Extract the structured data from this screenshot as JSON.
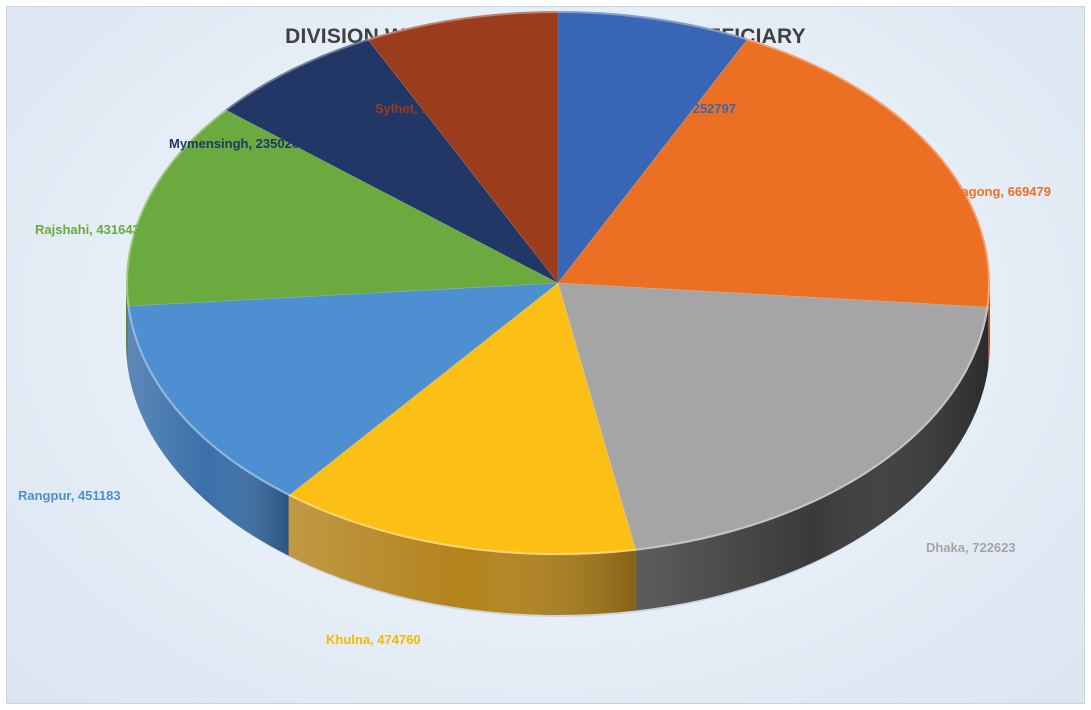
{
  "chart_data": {
    "type": "pie",
    "title": "DIVISION WISE CASH RECEIVED BY BENEFICIARY",
    "slices": [
      {
        "label": "Barisal, 252797",
        "name": "Barisal",
        "value": 252797,
        "color": "#3866b4",
        "side": "#284c8c"
      },
      {
        "label": "Chittagong, 669479",
        "name": "Chittagong",
        "value": 669479,
        "color": "#ec7024",
        "side": "#b5531a"
      },
      {
        "label": "Dhaka, 722623",
        "name": "Dhaka",
        "value": 722623,
        "color": "#a5a5a5",
        "side": "#3a3a3a"
      },
      {
        "label": "Khulna, 474760",
        "name": "Khulna",
        "value": 474760,
        "color": "#fbbf16",
        "side": "#b3831c"
      },
      {
        "label": "Rangpur, 451183",
        "name": "Rangpur",
        "value": 451183,
        "color": "#4d8fd1",
        "side": "#3a6fa8"
      },
      {
        "label": "Rajshahi, 431643",
        "name": "Rajshahi",
        "value": 431643,
        "color": "#6aaa3e",
        "side": "#4b7d2b"
      },
      {
        "label": "Mymensingh, 235026",
        "name": "Mymensingh",
        "value": 235026,
        "color": "#223766",
        "side": "#172749"
      },
      {
        "label": "Sylhet, 253624",
        "name": "Sylhet",
        "value": 253624,
        "color": "#9b3d1c",
        "side": "#6e2a13"
      }
    ],
    "label_colors": {
      "Barisal": "#3866b4",
      "Chittagong": "#ec7024",
      "Dhaka": "#a5a5a5",
      "Khulna": "#f5b800",
      "Rangpur": "#4d8fd1",
      "Rajshahi": "#6aaa3e",
      "Mymensingh": "#223766",
      "Sylhet": "#9b3d1c"
    },
    "legend": "none",
    "style": "3d-pie"
  }
}
